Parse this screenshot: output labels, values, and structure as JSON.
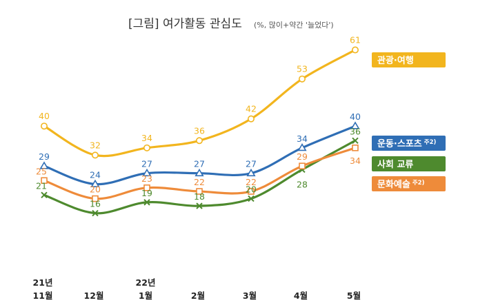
{
  "chart_data": {
    "type": "line",
    "title": "[그림] 여가활동 관심도",
    "subtitle": "(%, 많이+약간 '늘었다')",
    "xlabel": "",
    "ylabel": "",
    "ylim": [
      10,
      65
    ],
    "grid": false,
    "legend_position": "right",
    "categories": [
      {
        "top": "21년",
        "bottom": "11월"
      },
      {
        "top": "",
        "bottom": "12월"
      },
      {
        "top": "22년",
        "bottom": "1월"
      },
      {
        "top": "",
        "bottom": "2월"
      },
      {
        "top": "",
        "bottom": "3월"
      },
      {
        "top": "",
        "bottom": "4월"
      },
      {
        "top": "",
        "bottom": "5월"
      }
    ],
    "series": [
      {
        "name": "관광·여행",
        "sup": "",
        "color": "#F2B51E",
        "marker": "circle",
        "label_pos": "above",
        "values": [
          40,
          32,
          34,
          36,
          42,
          53,
          61
        ]
      },
      {
        "name": "운동·스포츠",
        "sup": "주2)",
        "color": "#2F6EB5",
        "marker": "triangle",
        "label_pos": "above",
        "values": [
          29,
          24,
          27,
          27,
          27,
          34,
          40
        ]
      },
      {
        "name": "사회 교류",
        "sup": "",
        "color": "#4E8A2E",
        "marker": "x",
        "label_pos": "mixed",
        "values": [
          21,
          16,
          19,
          18,
          20,
          28,
          36
        ]
      },
      {
        "name": "문화예술",
        "sup": "주2)",
        "color": "#EE8B3A",
        "marker": "square",
        "label_pos": "mixed",
        "values": [
          25,
          20,
          23,
          22,
          22,
          29,
          34
        ]
      }
    ]
  }
}
